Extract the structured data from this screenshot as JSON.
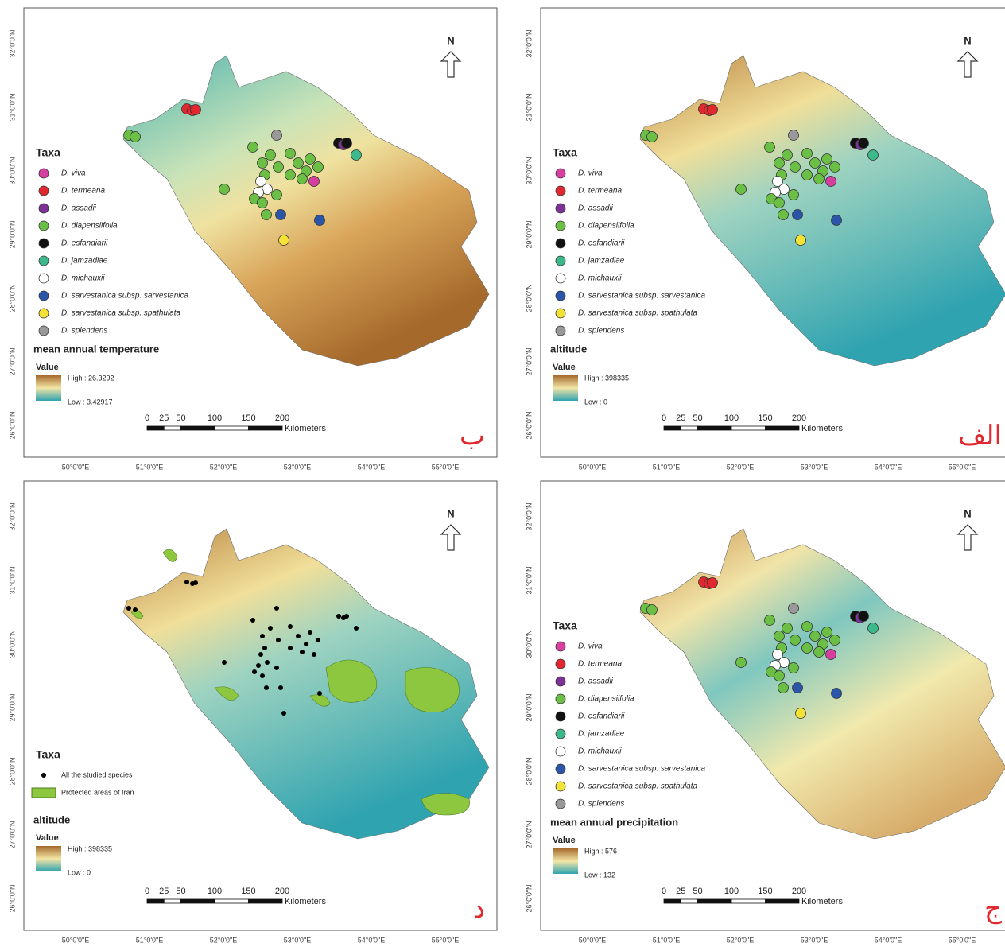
{
  "panels": [
    {
      "letter": "ب",
      "north": "N",
      "legend_title": "Taxa",
      "taxa": [
        {
          "name": "D. viva",
          "color": "#d63fa0",
          "marker": "dot"
        },
        {
          "name": "D. termeana",
          "color": "#e0282e",
          "marker": "dot"
        },
        {
          "name": "D. assadii",
          "color": "#7b3294",
          "marker": "dot"
        },
        {
          "name": "D. diapensiifolia",
          "color": "#6cbf45",
          "marker": "dot"
        },
        {
          "name": "D. esfandiarii",
          "color": "#111111",
          "marker": "dot"
        },
        {
          "name": "D. jamzadiae",
          "color": "#3cb98a",
          "marker": "dot"
        },
        {
          "name": "D. michauxii",
          "color": "#ffffff",
          "marker": "dot"
        },
        {
          "name": "D. sarvestanica subsp. sarvestanica",
          "color": "#2a55a8",
          "marker": "dot"
        },
        {
          "name": "D. sarvestanica subsp. spathulata",
          "color": "#f4e234",
          "marker": "dot"
        },
        {
          "name": "D. splendens",
          "color": "#999999",
          "marker": "dot"
        }
      ],
      "layer_title": "mean annual temperature",
      "value_label": "Value",
      "high": "High : 26.3292",
      "low": "Low : 3.42917",
      "scale": [
        "0",
        "25",
        "50",
        "100",
        "150",
        "200"
      ],
      "scale_unit": "Kilometers",
      "lat_labels": [
        "32°0'0\"N",
        "31°0'0\"N",
        "30°0'0\"N",
        "29°0'0\"N",
        "28°0'0\"N",
        "27°0'0\"N",
        "26°0'0\"N"
      ],
      "lon_labels": [
        "50°0'0\"E",
        "51°0'0\"E",
        "52°0'0\"E",
        "53°0'0\"E",
        "54°0'0\"E",
        "55°0'0\"E"
      ]
    },
    {
      "letter": "الف",
      "north": "N",
      "legend_title": "Taxa",
      "taxa": [
        {
          "name": "D. viva",
          "color": "#d63fa0",
          "marker": "dot"
        },
        {
          "name": "D. termeana",
          "color": "#e0282e",
          "marker": "dot"
        },
        {
          "name": "D. assadii",
          "color": "#7b3294",
          "marker": "dot"
        },
        {
          "name": "D. diapensiifolia",
          "color": "#6cbf45",
          "marker": "dot"
        },
        {
          "name": "D. esfandiarii",
          "color": "#111111",
          "marker": "dot"
        },
        {
          "name": "D. jamzadiae",
          "color": "#3cb98a",
          "marker": "dot"
        },
        {
          "name": "D. michauxii",
          "color": "#ffffff",
          "marker": "dot"
        },
        {
          "name": "D. sarvestanica subsp. sarvestanica",
          "color": "#2a55a8",
          "marker": "dot"
        },
        {
          "name": "D. sarvestanica subsp. spathulata",
          "color": "#f4e234",
          "marker": "dot"
        },
        {
          "name": "D. splendens",
          "color": "#999999",
          "marker": "dot"
        }
      ],
      "layer_title": "altitude",
      "value_label": "Value",
      "high": "High : 398335",
      "low": "Low : 0",
      "scale": [
        "0",
        "25",
        "50",
        "100",
        "150",
        "200"
      ],
      "scale_unit": "Kilometers",
      "lat_labels": [
        "32°0'0\"N",
        "31°0'0\"N",
        "30°0'0\"N",
        "29°0'0\"N",
        "28°0'0\"N",
        "27°0'0\"N",
        "26°0'0\"N"
      ],
      "lon_labels": [
        "50°0'0\"E",
        "51°0'0\"E",
        "52°0'0\"E",
        "53°0'0\"E",
        "54°0'0\"E",
        "55°0'0\"E"
      ]
    },
    {
      "letter": "د",
      "north": "N",
      "legend_title": "Taxa",
      "taxa": [
        {
          "name": "All the studied species",
          "color": "#000000",
          "marker": "dot"
        },
        {
          "name": "Protected areas of Iran",
          "color": "#8dc63f",
          "marker": "patch"
        }
      ],
      "layer_title": "altitude",
      "value_label": "Value",
      "high": "High : 398335",
      "low": "Low : 0",
      "scale": [
        "0",
        "25",
        "50",
        "100",
        "150",
        "200"
      ],
      "scale_unit": "Kilometers",
      "lat_labels": [
        "32°0'0\"N",
        "31°0'0\"N",
        "30°0'0\"N",
        "29°0'0\"N",
        "28°0'0\"N",
        "27°0'0\"N",
        "26°0'0\"N"
      ],
      "lon_labels": [
        "50°0'0\"E",
        "51°0'0\"E",
        "52°0'0\"E",
        "53°0'0\"E",
        "54°0'0\"E",
        "55°0'0\"E"
      ]
    },
    {
      "letter": "ج",
      "north": "N",
      "legend_title": "Taxa",
      "taxa": [
        {
          "name": "D. viva",
          "color": "#d63fa0",
          "marker": "dot"
        },
        {
          "name": "D. termeana",
          "color": "#e0282e",
          "marker": "dot"
        },
        {
          "name": "D. assadii",
          "color": "#7b3294",
          "marker": "dot"
        },
        {
          "name": "D. diapensiifolia",
          "color": "#6cbf45",
          "marker": "dot"
        },
        {
          "name": "D. esfandiarii",
          "color": "#111111",
          "marker": "dot"
        },
        {
          "name": "D. jamzadiae",
          "color": "#3cb98a",
          "marker": "dot"
        },
        {
          "name": "D. michauxii",
          "color": "#ffffff",
          "marker": "dot"
        },
        {
          "name": "D. sarvestanica subsp. sarvestanica",
          "color": "#2a55a8",
          "marker": "dot"
        },
        {
          "name": "D. sarvestanica subsp. spathulata",
          "color": "#f4e234",
          "marker": "dot"
        },
        {
          "name": "D. splendens",
          "color": "#999999",
          "marker": "dot"
        }
      ],
      "layer_title": "mean annual precipitation",
      "value_label": "Value",
      "high": "High : 576",
      "low": "Low : 132",
      "scale": [
        "0",
        "25",
        "50",
        "100",
        "150",
        "200"
      ],
      "scale_unit": "Kilometers",
      "lat_labels": [
        "32°0'0\"N",
        "31°0'0\"N",
        "30°0'0\"N",
        "29°0'0\"N",
        "28°0'0\"N",
        "27°0'0\"N",
        "26°0'0\"N"
      ],
      "lon_labels": [
        "50°0'0\"E",
        "51°0'0\"E",
        "52°0'0\"E",
        "53°0'0\"E",
        "54°0'0\"E",
        "55°0'0\"E"
      ]
    }
  ]
}
